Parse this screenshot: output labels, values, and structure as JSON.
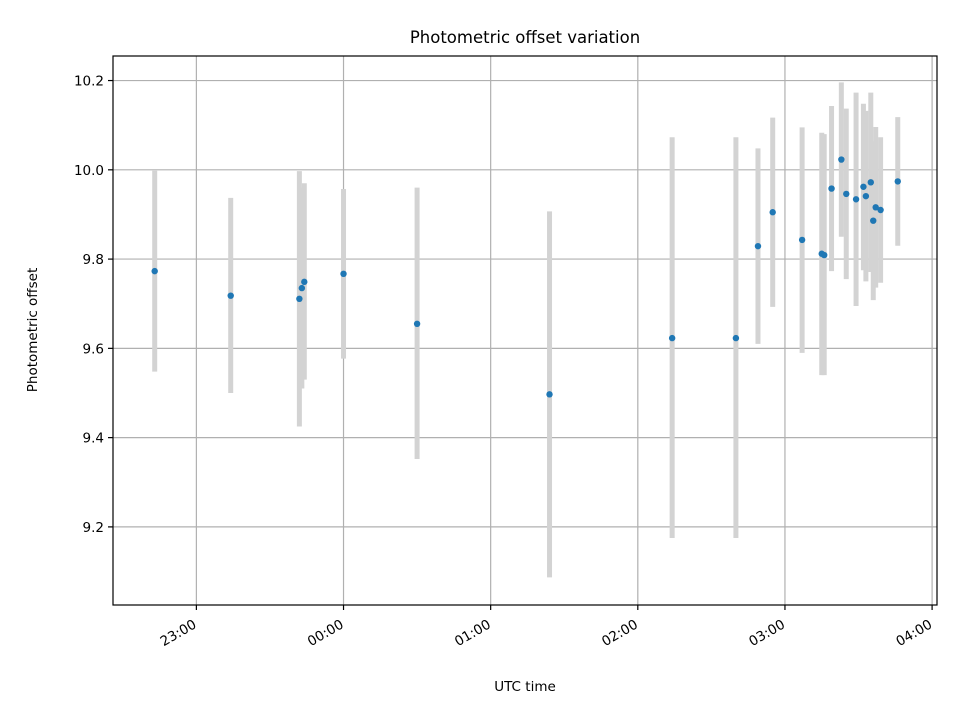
{
  "chart_data": {
    "type": "scatter",
    "title": "Photometric offset variation",
    "xlabel": "UTC time",
    "ylabel": "Photometric offset",
    "x_axis_type": "time",
    "xlim": [
      "22:26",
      "04:02"
    ],
    "ylim": [
      9.025,
      10.255
    ],
    "x_ticks": [
      "23:00",
      "00:00",
      "01:00",
      "02:00",
      "03:00",
      "04:00"
    ],
    "y_ticks": [
      "9.2",
      "9.4",
      "9.6",
      "9.8",
      "10.0",
      "10.2"
    ],
    "grid": true,
    "legend": "none",
    "series": [
      {
        "marker": "dot",
        "errorbars": "vertical",
        "points": [
          {
            "x": "22:43",
            "y": 9.773,
            "ylow": 9.548,
            "yhigh": 9.998
          },
          {
            "x": "23:14",
            "y": 9.718,
            "ylow": 9.5,
            "yhigh": 9.937
          },
          {
            "x": "23:42",
            "y": 9.711,
            "ylow": 9.425,
            "yhigh": 9.997
          },
          {
            "x": "23:43",
            "y": 9.735,
            "ylow": 9.51,
            "yhigh": 9.96
          },
          {
            "x": "23:44",
            "y": 9.749,
            "ylow": 9.53,
            "yhigh": 9.97
          },
          {
            "x": "00:00",
            "y": 9.767,
            "ylow": 9.577,
            "yhigh": 9.957
          },
          {
            "x": "00:30",
            "y": 9.655,
            "ylow": 9.352,
            "yhigh": 9.96
          },
          {
            "x": "01:24",
            "y": 9.497,
            "ylow": 9.087,
            "yhigh": 9.907
          },
          {
            "x": "02:14",
            "y": 9.623,
            "ylow": 9.175,
            "yhigh": 10.073
          },
          {
            "x": "02:40",
            "y": 9.623,
            "ylow": 9.175,
            "yhigh": 10.073
          },
          {
            "x": "02:49",
            "y": 9.829,
            "ylow": 9.61,
            "yhigh": 10.048
          },
          {
            "x": "02:55",
            "y": 9.905,
            "ylow": 9.693,
            "yhigh": 10.117
          },
          {
            "x": "03:07",
            "y": 9.843,
            "ylow": 9.59,
            "yhigh": 10.095
          },
          {
            "x": "03:15",
            "y": 9.812,
            "ylow": 9.54,
            "yhigh": 10.083
          },
          {
            "x": "03:16",
            "y": 9.809,
            "ylow": 9.54,
            "yhigh": 10.08
          },
          {
            "x": "03:19",
            "y": 9.958,
            "ylow": 9.773,
            "yhigh": 10.143
          },
          {
            "x": "03:23",
            "y": 10.023,
            "ylow": 9.85,
            "yhigh": 10.196
          },
          {
            "x": "03:25",
            "y": 9.946,
            "ylow": 9.755,
            "yhigh": 10.137
          },
          {
            "x": "03:29",
            "y": 9.934,
            "ylow": 9.695,
            "yhigh": 10.173
          },
          {
            "x": "03:32",
            "y": 9.962,
            "ylow": 9.775,
            "yhigh": 10.148
          },
          {
            "x": "03:33",
            "y": 9.941,
            "ylow": 9.75,
            "yhigh": 10.132
          },
          {
            "x": "03:35",
            "y": 9.972,
            "ylow": 9.771,
            "yhigh": 10.173
          },
          {
            "x": "03:36",
            "y": 9.886,
            "ylow": 9.708,
            "yhigh": 10.064
          },
          {
            "x": "03:37",
            "y": 9.916,
            "ylow": 9.736,
            "yhigh": 10.096
          },
          {
            "x": "03:39",
            "y": 9.91,
            "ylow": 9.747,
            "yhigh": 10.073
          },
          {
            "x": "03:46",
            "y": 9.974,
            "ylow": 9.83,
            "yhigh": 10.118
          }
        ]
      }
    ],
    "colors": {
      "marker": "#1f77b4",
      "errorbar": "#d3d3d3",
      "grid": "#b0b0b0",
      "axis": "#000000"
    }
  }
}
